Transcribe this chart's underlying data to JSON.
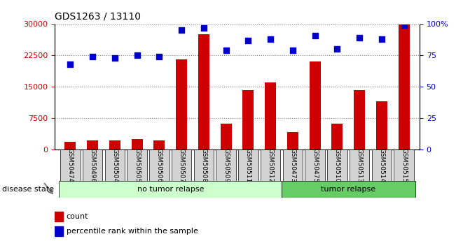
{
  "title": "GDS1263 / 13110",
  "samples": [
    "GSM50474",
    "GSM50496",
    "GSM50504",
    "GSM50505",
    "GSM50506",
    "GSM50507",
    "GSM50508",
    "GSM50509",
    "GSM50511",
    "GSM50512",
    "GSM50473",
    "GSM50475",
    "GSM50510",
    "GSM50513",
    "GSM50514",
    "GSM50515"
  ],
  "counts": [
    1800,
    2200,
    2100,
    2500,
    2200,
    21500,
    27500,
    6200,
    14200,
    16000,
    4200,
    21000,
    6200,
    14200,
    11500,
    30000
  ],
  "percentiles": [
    68,
    74,
    73,
    75,
    74,
    95,
    97,
    79,
    87,
    88,
    79,
    91,
    80,
    89,
    88,
    99
  ],
  "no_tumor_samples": 10,
  "tumor_samples": 6,
  "ylim_left": [
    0,
    30000
  ],
  "ylim_right": [
    0,
    100
  ],
  "yticks_left": [
    0,
    7500,
    15000,
    22500,
    30000
  ],
  "yticks_right": [
    0,
    25,
    50,
    75,
    100
  ],
  "bar_color": "#cc0000",
  "dot_color": "#0000cc",
  "no_tumor_color": "#ccffcc",
  "tumor_color": "#66cc66",
  "tick_bg_color": "#d3d3d3",
  "legend_count_label": "count",
  "legend_pct_label": "percentile rank within the sample"
}
